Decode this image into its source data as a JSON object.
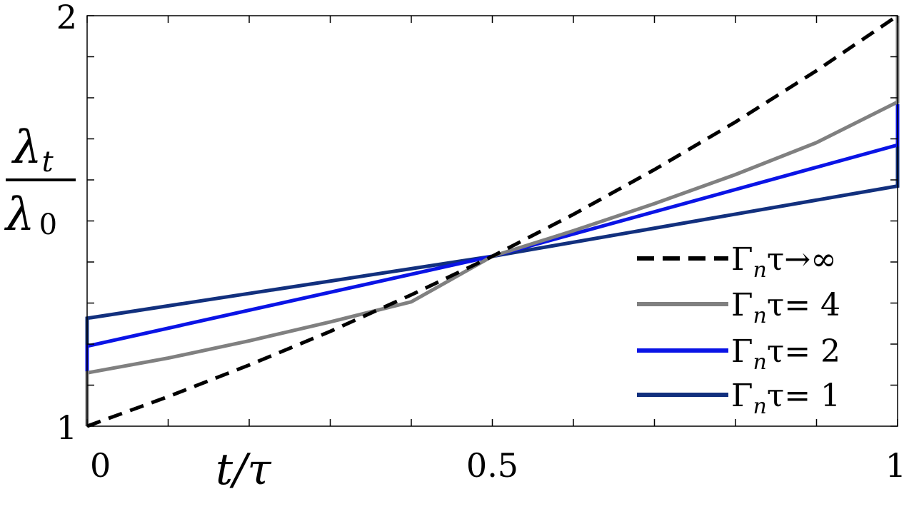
{
  "chart_data": {
    "type": "line",
    "xlabel": "t/τ",
    "ylabel_num": "λ",
    "ylabel_num_sub": "t",
    "ylabel_den": "λ",
    "ylabel_den_sub": "0",
    "xlim": [
      0,
      1
    ],
    "ylim": [
      1,
      2
    ],
    "x_tick_labels": [
      {
        "value": 0,
        "label": "0"
      },
      {
        "value": 0.5,
        "label": "0.5"
      },
      {
        "value": 1,
        "label": "1"
      }
    ],
    "x_minor_ticks": [
      0.1,
      0.2,
      0.3,
      0.4,
      0.6,
      0.7,
      0.8,
      0.9
    ],
    "y_tick_labels": [
      {
        "value": 1,
        "label": "1"
      },
      {
        "value": 2,
        "label": "2"
      }
    ],
    "y_minor_ticks": [
      1.1,
      1.2,
      1.3,
      1.4,
      1.5,
      1.6,
      1.7,
      1.8,
      1.9
    ],
    "grid": false,
    "legend_position": "bottom-right",
    "series": [
      {
        "name": "Γnτ→∞",
        "name_base": "Γ",
        "name_sub": "n",
        "name_rest": "τ→∞",
        "color": "#000000",
        "dash": true,
        "x": [
          0,
          0.1,
          0.2,
          0.3,
          0.4,
          0.5,
          0.6,
          0.7,
          0.8,
          0.9,
          1
        ],
        "y": [
          1.0,
          1.072,
          1.149,
          1.231,
          1.32,
          1.414,
          1.516,
          1.625,
          1.741,
          1.866,
          2.0
        ]
      },
      {
        "name": "Γnτ= 4",
        "name_base": "Γ",
        "name_sub": "n",
        "name_rest": "τ= 4",
        "color": "#808080",
        "dash": false,
        "x": [
          0,
          0,
          0.1,
          0.2,
          0.3,
          0.4,
          0.5,
          0.6,
          0.7,
          0.8,
          0.9,
          1,
          1
        ],
        "y": [
          1.0,
          1.13,
          1.166,
          1.208,
          1.254,
          1.303,
          1.414,
          1.476,
          1.542,
          1.613,
          1.691,
          1.79,
          2.0
        ]
      },
      {
        "name": "Γnτ= 2",
        "name_base": "Γ",
        "name_sub": "n",
        "name_rest": "τ= 2",
        "color": "#0a14e6",
        "dash": false,
        "x": [
          0,
          0,
          0.5,
          1,
          1
        ],
        "y": [
          1.13,
          1.195,
          1.414,
          1.685,
          1.785
        ]
      },
      {
        "name": "Γnτ= 1",
        "name_base": "Γ",
        "name_sub": "n",
        "name_rest": "τ= 1",
        "color": "#12307e",
        "dash": false,
        "x": [
          0,
          0,
          0.5,
          1,
          1
        ],
        "y": [
          1.195,
          1.263,
          1.414,
          1.585,
          1.685
        ]
      }
    ]
  }
}
